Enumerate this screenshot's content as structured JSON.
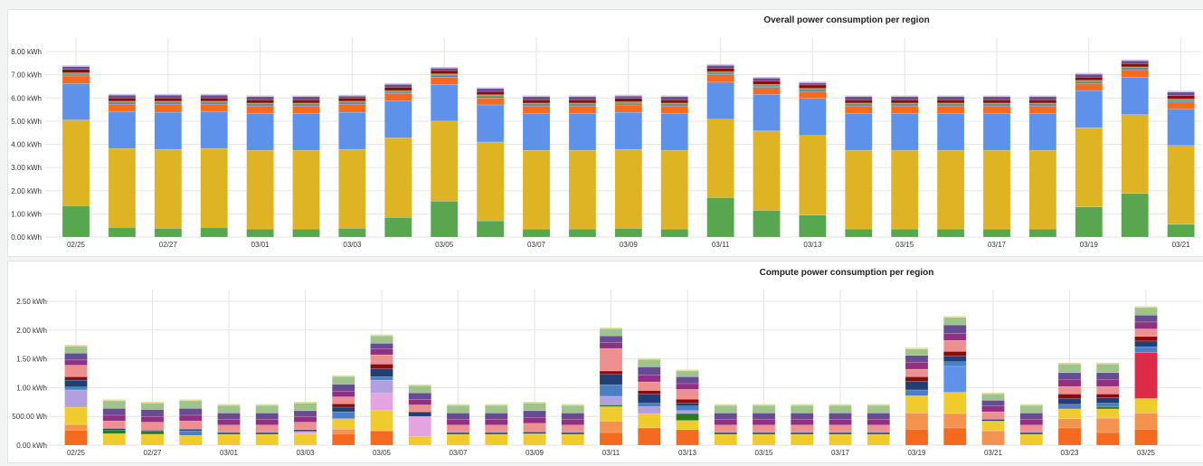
{
  "chart_data": [
    {
      "type": "bar",
      "stacked": true,
      "title": "Overall power consumption per region",
      "xlabel": "",
      "ylabel": "",
      "ylim": [
        0,
        8
      ],
      "y_ticks": [
        "0.00 kWh",
        "1.00 kWh",
        "2.00 kWh",
        "3.00 kWh",
        "4.00 kWh",
        "5.00 kWh",
        "6.00 kWh",
        "7.00 kWh",
        "8.00 kWh"
      ],
      "categories": [
        "02/25",
        "02/26",
        "02/27",
        "02/28",
        "03/01",
        "03/02",
        "03/03",
        "03/04",
        "03/05",
        "03/06",
        "03/07",
        "03/08",
        "03/09",
        "03/10",
        "03/11",
        "03/12",
        "03/13",
        "03/14",
        "03/15",
        "03/16",
        "03/17",
        "03/18",
        "03/19",
        "03/20",
        "03/21"
      ],
      "x_tick_labels": [
        "02/25",
        "02/27",
        "03/01",
        "03/03",
        "03/05",
        "03/07",
        "03/09",
        "03/11",
        "03/13",
        "03/15",
        "03/17",
        "03/19",
        "03/21"
      ],
      "grid": true,
      "unit": "kWh",
      "series": [
        {
          "color": "#58a64f",
          "values": [
            1.35,
            0.42,
            0.38,
            0.42,
            0.35,
            0.35,
            0.38,
            0.85,
            1.55,
            0.7,
            0.35,
            0.35,
            0.38,
            0.35,
            1.7,
            1.15,
            0.95,
            0.35,
            0.35,
            0.35,
            0.35,
            0.35,
            1.3,
            1.88,
            0.55
          ]
        },
        {
          "color": "#deb424",
          "values": [
            3.7,
            3.4,
            3.4,
            3.4,
            3.39,
            3.39,
            3.4,
            3.43,
            3.45,
            3.4,
            3.39,
            3.39,
            3.4,
            3.39,
            3.38,
            3.43,
            3.43,
            3.39,
            3.39,
            3.39,
            3.39,
            3.39,
            3.42,
            3.4,
            3.4
          ]
        },
        {
          "color": "#5e92ea",
          "values": [
            1.57,
            1.6,
            1.6,
            1.6,
            1.6,
            1.6,
            1.6,
            1.6,
            1.58,
            1.6,
            1.6,
            1.6,
            1.6,
            1.6,
            1.6,
            1.57,
            1.6,
            1.6,
            1.6,
            1.6,
            1.6,
            1.6,
            1.6,
            1.6,
            1.57
          ]
        },
        {
          "color": "#f46a1f",
          "values": [
            0.33,
            0.3,
            0.34,
            0.3,
            0.3,
            0.3,
            0.34,
            0.3,
            0.32,
            0.3,
            0.3,
            0.3,
            0.32,
            0.3,
            0.32,
            0.3,
            0.3,
            0.3,
            0.3,
            0.3,
            0.3,
            0.3,
            0.3,
            0.32,
            0.3
          ]
        },
        {
          "color": "#4b7fc4",
          "values": [
            0.06,
            0.06,
            0.06,
            0.06,
            0.06,
            0.06,
            0.06,
            0.06,
            0.06,
            0.06,
            0.06,
            0.06,
            0.06,
            0.06,
            0.06,
            0.06,
            0.06,
            0.06,
            0.06,
            0.06,
            0.06,
            0.06,
            0.06,
            0.06,
            0.06
          ]
        },
        {
          "color": "#2a7a1e",
          "values": [
            0.04,
            0.04,
            0.04,
            0.04,
            0.04,
            0.04,
            0.04,
            0.04,
            0.04,
            0.04,
            0.04,
            0.04,
            0.04,
            0.04,
            0.04,
            0.04,
            0.04,
            0.04,
            0.04,
            0.04,
            0.04,
            0.04,
            0.04,
            0.04,
            0.04
          ]
        },
        {
          "color": "#9a8a2a",
          "values": [
            0.04,
            0.04,
            0.04,
            0.04,
            0.04,
            0.04,
            0.04,
            0.04,
            0.04,
            0.04,
            0.04,
            0.04,
            0.04,
            0.04,
            0.04,
            0.04,
            0.04,
            0.04,
            0.04,
            0.04,
            0.04,
            0.04,
            0.04,
            0.04,
            0.04
          ]
        },
        {
          "color": "#8b0a0a",
          "values": [
            0.14,
            0.14,
            0.14,
            0.14,
            0.14,
            0.14,
            0.14,
            0.14,
            0.14,
            0.14,
            0.14,
            0.14,
            0.14,
            0.14,
            0.14,
            0.14,
            0.14,
            0.14,
            0.14,
            0.14,
            0.14,
            0.14,
            0.14,
            0.14,
            0.14
          ]
        },
        {
          "color": "#674b93",
          "values": [
            0.12,
            0.12,
            0.12,
            0.12,
            0.13,
            0.13,
            0.08,
            0.12,
            0.1,
            0.12,
            0.13,
            0.13,
            0.1,
            0.13,
            0.12,
            0.12,
            0.09,
            0.13,
            0.13,
            0.13,
            0.13,
            0.13,
            0.12,
            0.12,
            0.15
          ]
        }
      ]
    },
    {
      "type": "bar",
      "stacked": true,
      "title": "Compute power consumption per region",
      "xlabel": "",
      "ylabel": "",
      "ylim": [
        0,
        2.5
      ],
      "y_ticks": [
        "0.00 kWh",
        "500.00 Wh",
        "1.00 kWh",
        "1.50 kWh",
        "2.00 kWh",
        "2.50 kWh"
      ],
      "categories": [
        "02/25",
        "02/26",
        "02/27",
        "02/28",
        "03/01",
        "03/02",
        "03/03",
        "03/04",
        "03/05",
        "03/06",
        "03/07",
        "03/08",
        "03/09",
        "03/10",
        "03/11",
        "03/12",
        "03/13",
        "03/14",
        "03/15",
        "03/16",
        "03/17",
        "03/18",
        "03/19",
        "03/20",
        "03/21",
        "03/22",
        "03/23",
        "03/24",
        "03/25"
      ],
      "x_tick_labels": [
        "02/25",
        "02/27",
        "03/01",
        "03/03",
        "03/05",
        "03/07",
        "03/09",
        "03/11",
        "03/13",
        "03/15",
        "03/17",
        "03/19",
        "03/21",
        "03/23",
        "03/25"
      ],
      "grid": true,
      "unit": "kWh",
      "series": [
        {
          "color": "#f46a1f",
          "values": [
            0.26,
            0,
            0,
            0,
            0,
            0,
            0,
            0.2,
            0.25,
            0,
            0,
            0,
            0,
            0,
            0.22,
            0.3,
            0.27,
            0,
            0,
            0,
            0,
            0,
            0.28,
            0.3,
            0,
            0,
            0.3,
            0.22,
            0.28
          ]
        },
        {
          "color": "#f4924f",
          "values": [
            0.1,
            0,
            0,
            0,
            0,
            0,
            0,
            0.08,
            0,
            0,
            0,
            0,
            0,
            0,
            0.2,
            0,
            0,
            0,
            0,
            0,
            0,
            0,
            0.28,
            0.25,
            0.25,
            0,
            0.16,
            0.25,
            0.28
          ]
        },
        {
          "color": "#f0cb2e",
          "values": [
            0.3,
            0.2,
            0.19,
            0.17,
            0.19,
            0.19,
            0.2,
            0.18,
            0.35,
            0.15,
            0.19,
            0.19,
            0.2,
            0.19,
            0.25,
            0.25,
            0.16,
            0.19,
            0.19,
            0.19,
            0.19,
            0.19,
            0.3,
            0.37,
            0.17,
            0.19,
            0.17,
            0.16,
            0.25
          ]
        },
        {
          "color": "#2a7a1e",
          "values": [
            0,
            0.06,
            0.05,
            0,
            0,
            0,
            0,
            0,
            0,
            0,
            0,
            0,
            0,
            0,
            0.03,
            0,
            0.12,
            0,
            0,
            0,
            0,
            0,
            0,
            0,
            0,
            0,
            0,
            0.04,
            0
          ]
        },
        {
          "color": "#5e92ea",
          "values": [
            0,
            0,
            0,
            0,
            0,
            0,
            0,
            0,
            0,
            0,
            0,
            0,
            0,
            0,
            0,
            0,
            0,
            0,
            0,
            0,
            0,
            0,
            0,
            0.45,
            0,
            0,
            0,
            0,
            0
          ]
        },
        {
          "color": "#dc2c48",
          "values": [
            0,
            0,
            0,
            0,
            0,
            0,
            0,
            0,
            0,
            0,
            0,
            0,
            0,
            0,
            0,
            0,
            0,
            0,
            0,
            0,
            0,
            0,
            0,
            0,
            0,
            0,
            0,
            0,
            0.8
          ]
        },
        {
          "color": "#e3a4e0",
          "values": [
            0,
            0,
            0,
            0,
            0,
            0,
            0.04,
            0,
            0.3,
            0.35,
            0,
            0,
            0,
            0,
            0,
            0,
            0,
            0,
            0,
            0,
            0,
            0,
            0,
            0,
            0,
            0,
            0,
            0,
            0
          ]
        },
        {
          "color": "#b19fe0",
          "values": [
            0.3,
            0,
            0,
            0,
            0,
            0,
            0,
            0,
            0.23,
            0,
            0,
            0,
            0,
            0,
            0.15,
            0.12,
            0.05,
            0,
            0,
            0,
            0,
            0,
            0,
            0,
            0,
            0,
            0,
            0,
            0
          ]
        },
        {
          "color": "#4b7fc4",
          "values": [
            0.05,
            0,
            0,
            0.08,
            0,
            0,
            0,
            0.12,
            0.06,
            0,
            0,
            0,
            0,
            0,
            0.2,
            0.06,
            0.08,
            0,
            0,
            0,
            0,
            0,
            0.1,
            0.08,
            0,
            0,
            0.08,
            0.06,
            0.1
          ]
        },
        {
          "color": "#223f75",
          "values": [
            0.12,
            0.03,
            0.02,
            0.03,
            0.03,
            0.03,
            0.03,
            0.08,
            0.14,
            0.08,
            0.03,
            0.03,
            0.03,
            0.03,
            0.18,
            0.16,
            0.05,
            0.03,
            0.03,
            0.03,
            0.03,
            0.03,
            0.15,
            0.1,
            0.03,
            0.03,
            0.1,
            0.1,
            0.1
          ]
        },
        {
          "color": "#8b0a0a",
          "values": [
            0.06,
            0,
            0,
            0,
            0,
            0,
            0,
            0.06,
            0.08,
            0,
            0,
            0,
            0,
            0,
            0.06,
            0.06,
            0.07,
            0,
            0,
            0,
            0,
            0,
            0.08,
            0.08,
            0,
            0,
            0.08,
            0.06,
            0.08
          ]
        },
        {
          "color": "#ef9090",
          "values": [
            0.2,
            0.13,
            0.14,
            0.14,
            0.13,
            0.13,
            0.13,
            0.12,
            0.16,
            0.12,
            0.13,
            0.13,
            0.15,
            0.13,
            0.39,
            0.15,
            0.17,
            0.13,
            0.13,
            0.13,
            0.13,
            0.13,
            0.13,
            0.19,
            0.13,
            0.13,
            0.13,
            0.13,
            0.13
          ]
        },
        {
          "color": "#922f82",
          "values": [
            0.09,
            0.1,
            0.1,
            0.1,
            0.1,
            0.1,
            0.1,
            0.1,
            0.1,
            0.09,
            0.1,
            0.1,
            0.1,
            0.1,
            0.1,
            0.12,
            0.1,
            0.1,
            0.1,
            0.1,
            0.1,
            0.1,
            0.12,
            0.12,
            0.1,
            0.1,
            0.12,
            0.12,
            0.12
          ]
        },
        {
          "color": "#674b93",
          "values": [
            0.12,
            0.12,
            0.12,
            0.12,
            0.11,
            0.11,
            0.1,
            0.12,
            0.1,
            0.12,
            0.11,
            0.11,
            0.12,
            0.11,
            0.12,
            0.14,
            0.12,
            0.11,
            0.11,
            0.11,
            0.11,
            0.11,
            0.12,
            0.15,
            0.1,
            0.11,
            0.12,
            0.12,
            0.12
          ]
        },
        {
          "color": "#9dc58a",
          "values": [
            0.12,
            0.13,
            0.11,
            0.13,
            0.13,
            0.13,
            0.13,
            0.13,
            0.13,
            0.12,
            0.13,
            0.13,
            0.13,
            0.13,
            0.12,
            0.13,
            0.1,
            0.13,
            0.13,
            0.13,
            0.13,
            0.13,
            0.11,
            0.13,
            0.11,
            0.13,
            0.15,
            0.15,
            0.13
          ]
        }
      ]
    }
  ]
}
